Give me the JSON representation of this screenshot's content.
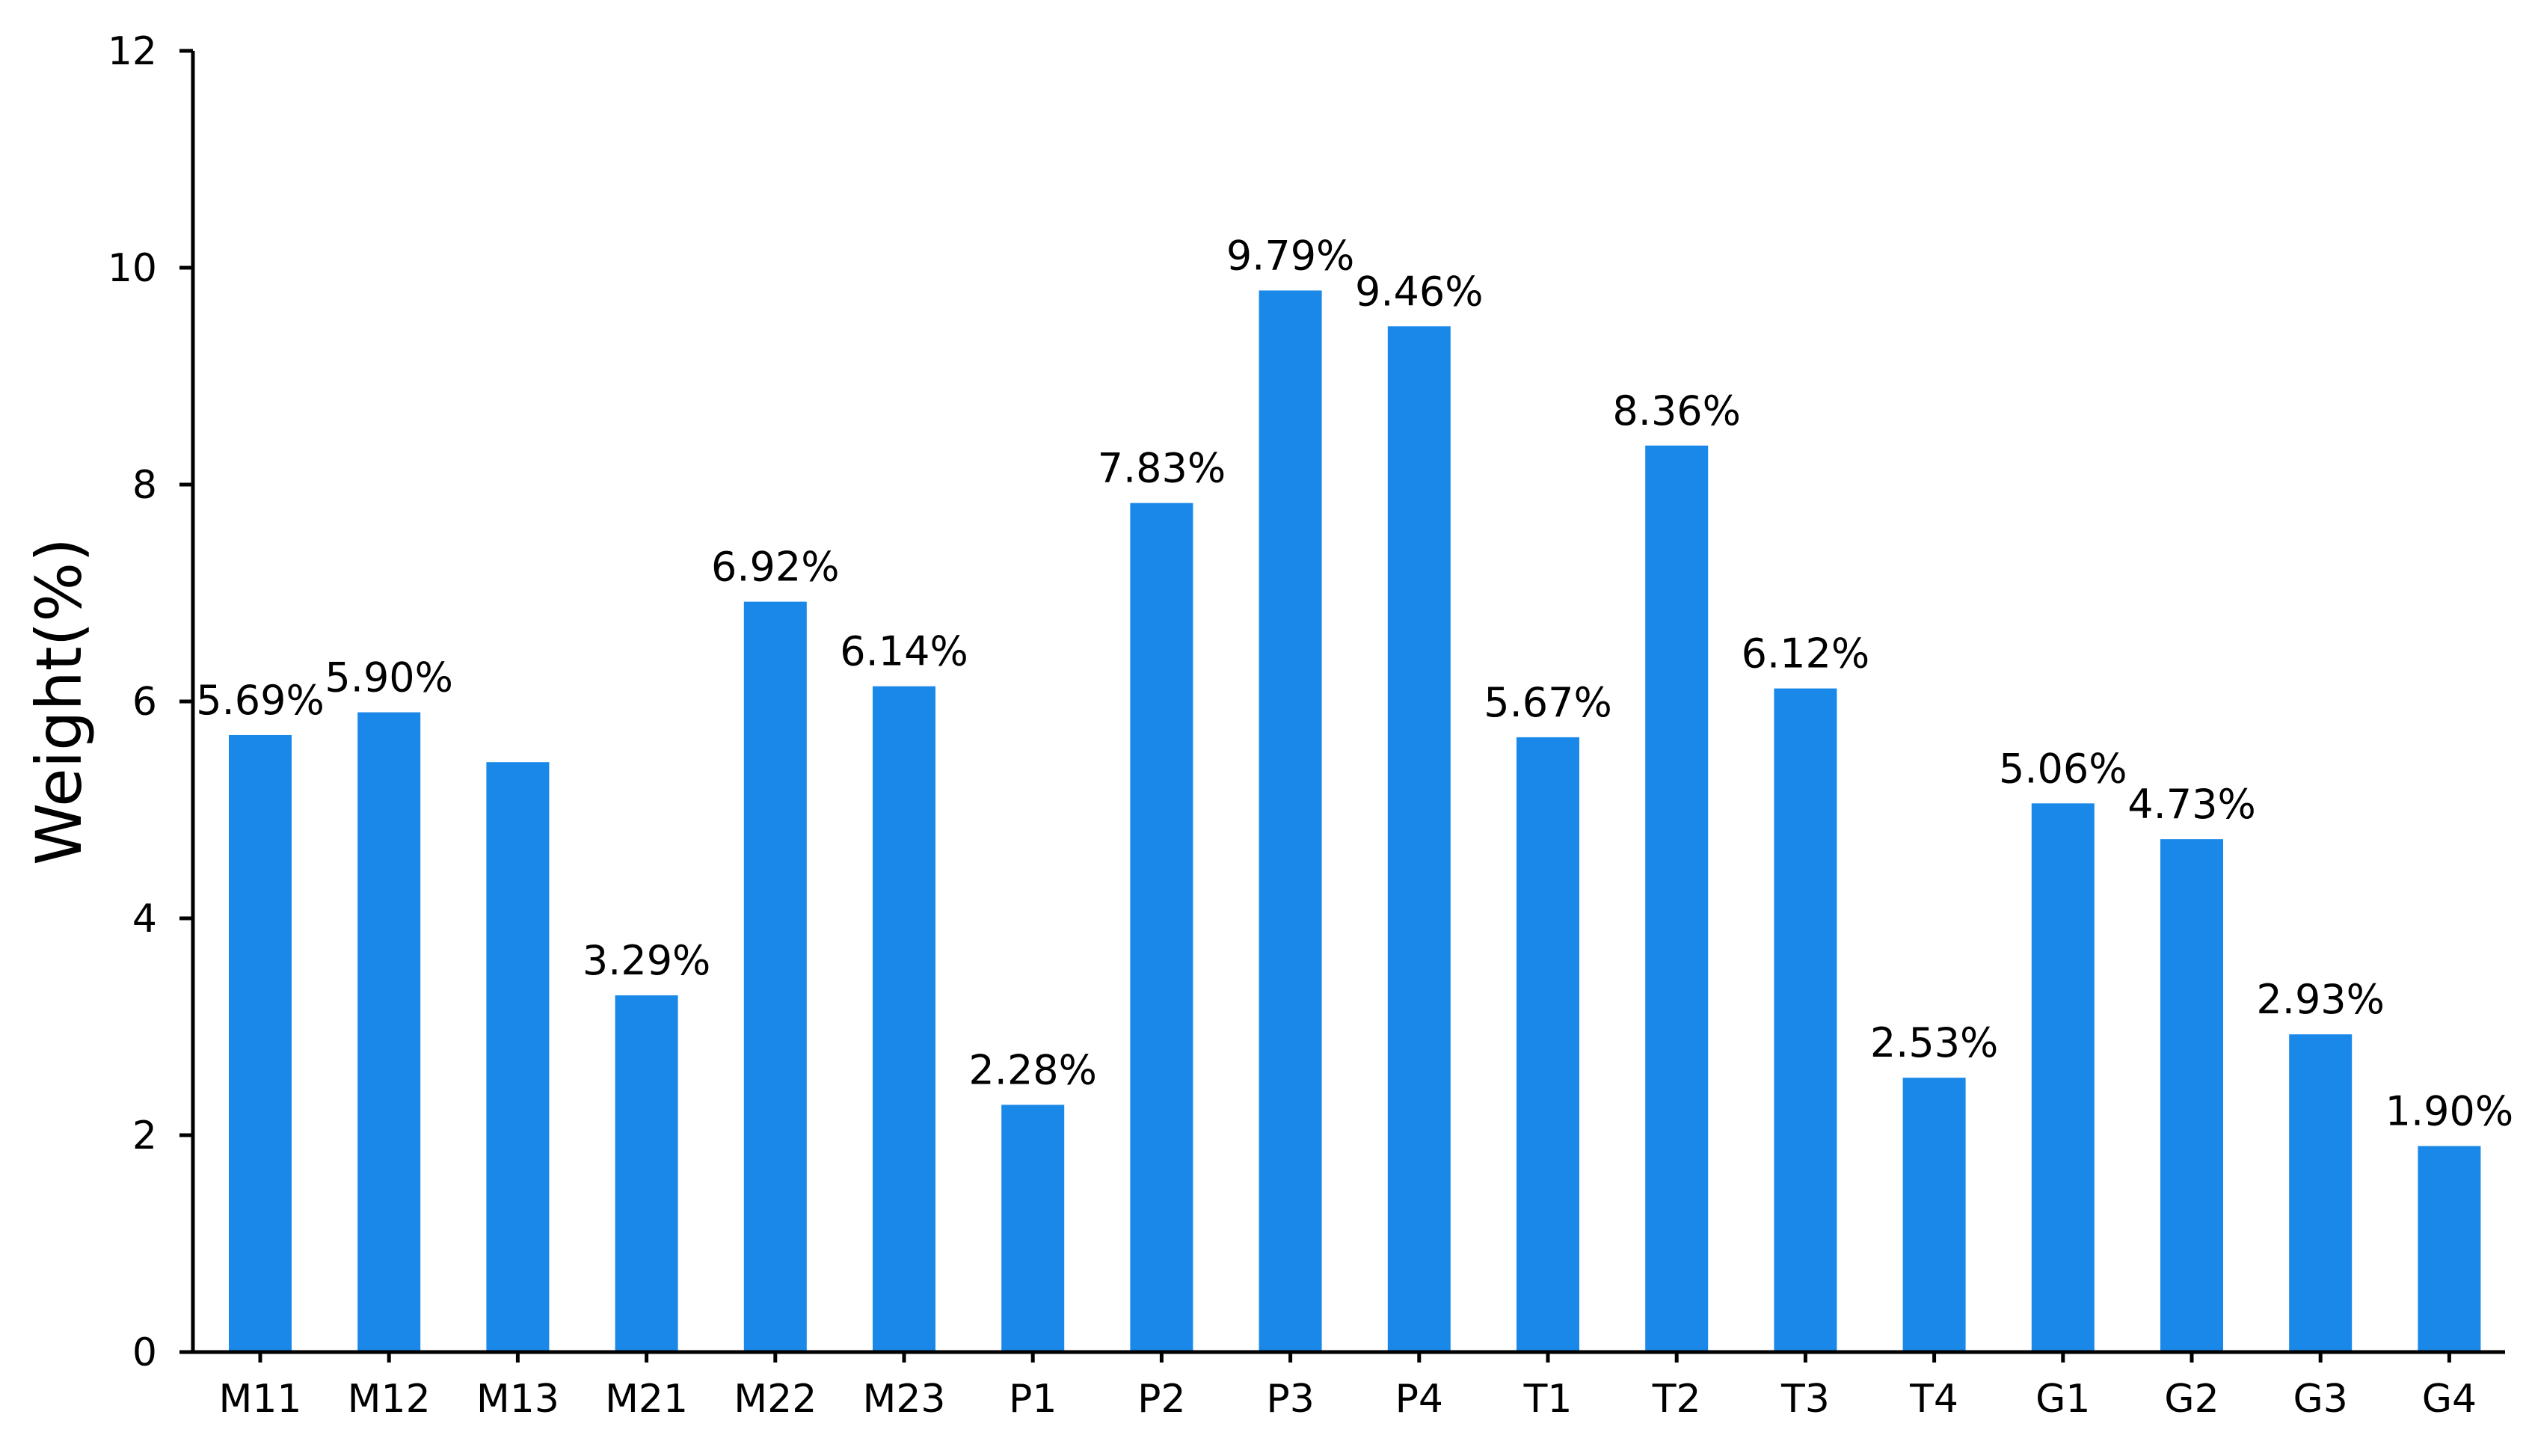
{
  "chart_data": {
    "type": "bar",
    "title": "",
    "xlabel": "",
    "ylabel": "Weight(%)",
    "ylim": [
      0,
      12
    ],
    "yticks": [
      "0",
      "2",
      "4",
      "6",
      "8",
      "10",
      "12"
    ],
    "grid": false,
    "bar_color": "#1a88e8",
    "categories": [
      "M11",
      "M12",
      "M13",
      "M21",
      "M22",
      "M23",
      "P1",
      "P2",
      "P3",
      "P4",
      "T1",
      "T2",
      "T3",
      "T4",
      "G1",
      "G2",
      "G3",
      "G4"
    ],
    "values": [
      5.69,
      5.9,
      5.44,
      3.29,
      6.92,
      6.14,
      2.28,
      7.83,
      9.79,
      9.46,
      5.67,
      8.36,
      6.12,
      2.53,
      5.06,
      4.73,
      2.93,
      1.9
    ],
    "data_labels": [
      "5.69%",
      "5.90%",
      "",
      "3.29%",
      "6.92%",
      "6.14%",
      "2.28%",
      "7.83%",
      "9.79%",
      "9.46%",
      "5.67%",
      "8.36%",
      "6.12%",
      "2.53%",
      "5.06%",
      "4.73%",
      "2.93%",
      "1.90%"
    ]
  }
}
